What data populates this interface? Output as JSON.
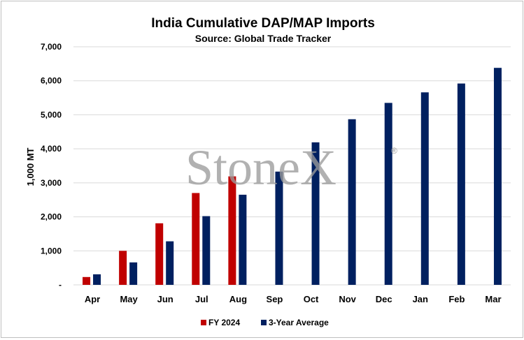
{
  "chart_data": {
    "type": "bar",
    "title": "India Cumulative DAP/MAP Imports",
    "subtitle": "Source: Global Trade Tracker",
    "ylabel": "1,000 MT",
    "xlabel": "",
    "ylim": [
      0,
      7000
    ],
    "yticks": [
      0,
      1000,
      2000,
      3000,
      4000,
      5000,
      6000,
      7000
    ],
    "ytick_labels": [
      "-",
      "1,000",
      "2,000",
      "3,000",
      "4,000",
      "5,000",
      "6,000",
      "7,000"
    ],
    "grid": true,
    "legend_position": "bottom",
    "categories": [
      "Apr",
      "May",
      "Jun",
      "Jul",
      "Aug",
      "Sep",
      "Oct",
      "Nov",
      "Dec",
      "Jan",
      "Feb",
      "Mar"
    ],
    "series": [
      {
        "name": "FY 2024",
        "color": "#c00000",
        "values": [
          230,
          1000,
          1810,
          2700,
          3190,
          null,
          null,
          null,
          null,
          null,
          null,
          null
        ]
      },
      {
        "name": "3-Year Average",
        "color": "#002060",
        "values": [
          310,
          660,
          1280,
          2020,
          2650,
          3330,
          4190,
          4870,
          5350,
          5660,
          5920,
          6380
        ]
      }
    ]
  },
  "watermark": {
    "text": "StoneX",
    "mark": "®"
  }
}
